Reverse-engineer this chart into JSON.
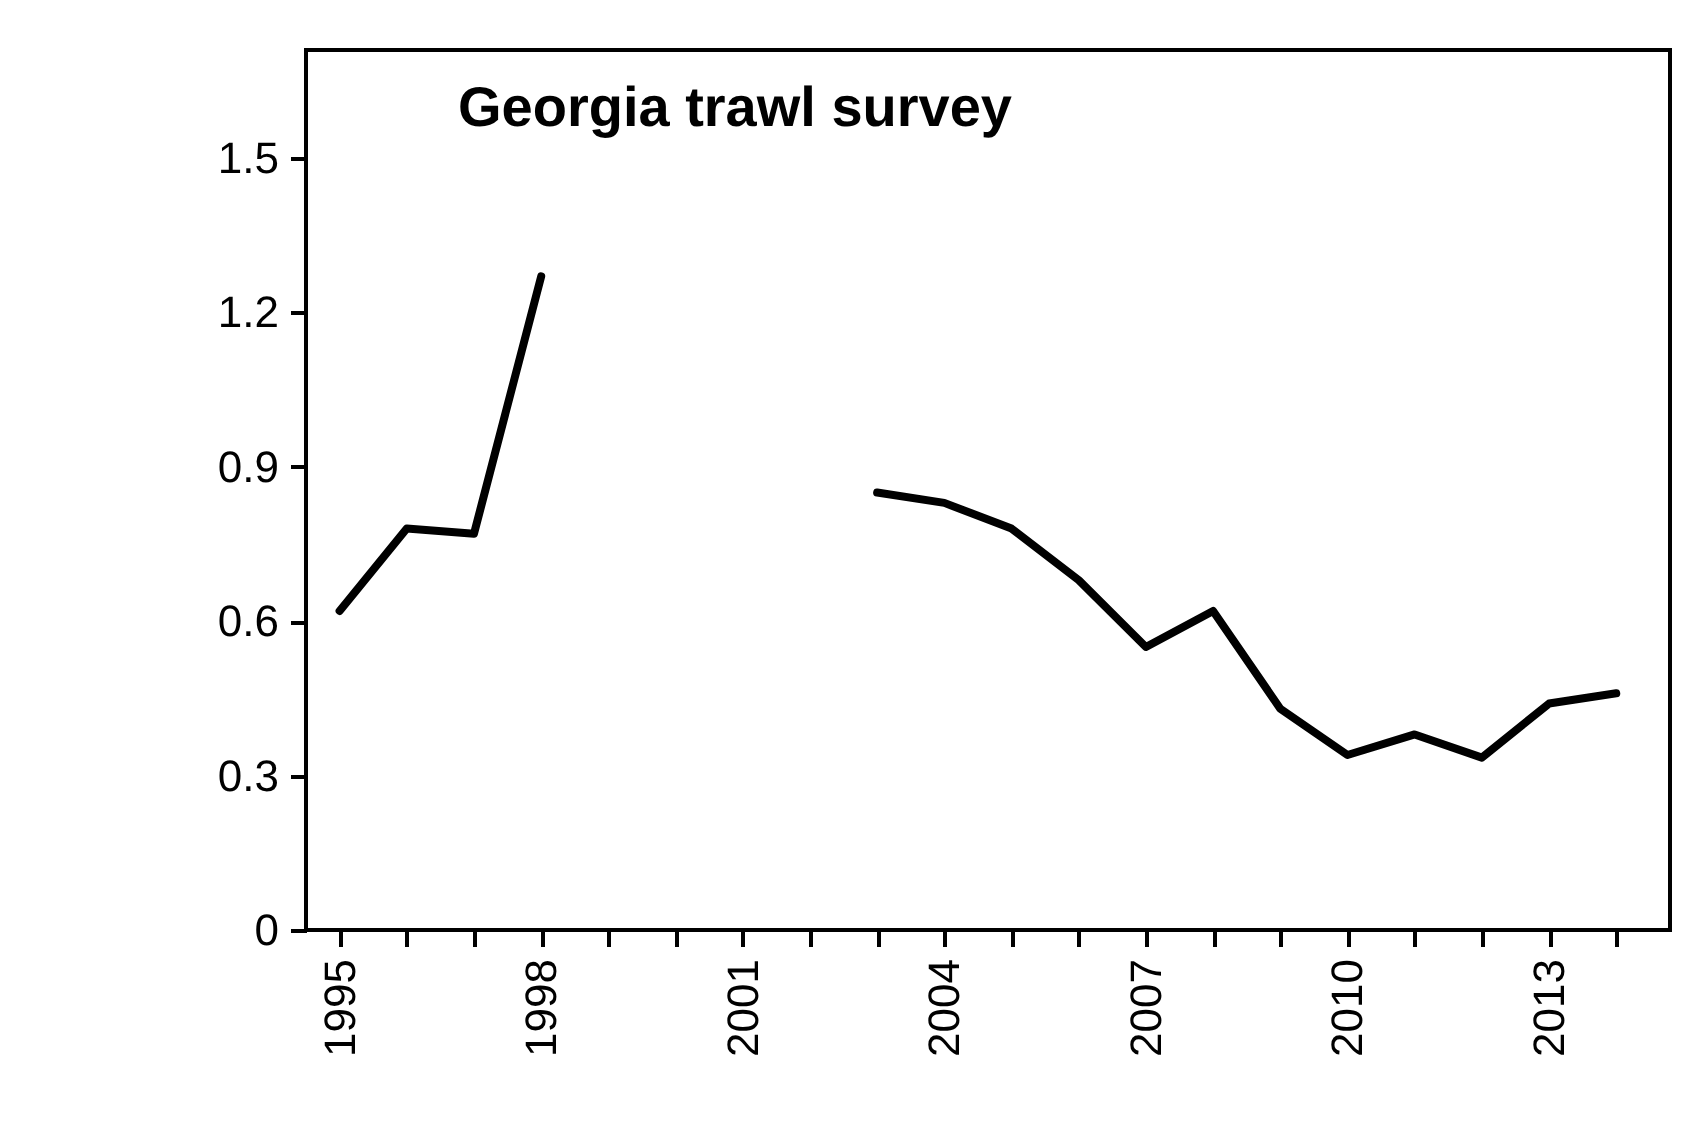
{
  "chart_data": {
    "type": "line",
    "title": "Georgia trawl survey",
    "x": [
      1995,
      1996,
      1997,
      1998,
      1999,
      2000,
      2001,
      2002,
      2003,
      2004,
      2005,
      2006,
      2007,
      2008,
      2009,
      2010,
      2011,
      2012,
      2013,
      2014
    ],
    "series": [
      {
        "color": "#000000",
        "values": [
          0.62,
          0.78,
          0.77,
          1.27,
          null,
          null,
          null,
          null,
          0.85,
          0.83,
          0.78,
          0.68,
          0.55,
          0.62,
          0.43,
          0.34,
          0.38,
          0.335,
          0.44,
          0.46
        ]
      }
    ],
    "xlim": [
      1994.5,
      2014.8
    ],
    "xticks": [
      1995,
      {
        "value": 1996,
        "label": null
      },
      {
        "value": 1997,
        "label": null
      },
      1998,
      {
        "value": 1999,
        "label": null
      },
      {
        "value": 2000,
        "label": null
      },
      2001,
      {
        "value": 2002,
        "label": null
      },
      {
        "value": 2003,
        "label": null
      },
      2004,
      {
        "value": 2005,
        "label": null
      },
      {
        "value": 2006,
        "label": null
      },
      2007,
      {
        "value": 2008,
        "label": null
      },
      {
        "value": 2009,
        "label": null
      },
      2010,
      {
        "value": 2011,
        "label": null
      },
      {
        "value": 2012,
        "label": null
      },
      2013,
      {
        "value": 2014,
        "label": null
      }
    ],
    "ylim": [
      0,
      1.71
    ],
    "yticks": [
      0,
      0.3,
      0.6,
      0.9,
      1.2,
      1.5
    ],
    "grid": false,
    "legend": false,
    "marker": "none",
    "line_style": "solid"
  }
}
